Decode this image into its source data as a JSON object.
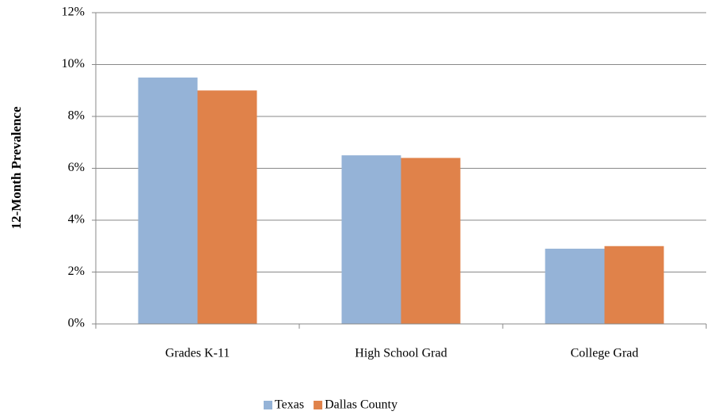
{
  "chart_data": {
    "type": "bar",
    "y_axis_label": "12-Month Prevalence",
    "categories": [
      "Grades K-11",
      "High School Grad",
      "College Grad"
    ],
    "series": [
      {
        "name": "Texas",
        "color": "#95b3d7",
        "values": [
          9.5,
          6.5,
          2.9
        ]
      },
      {
        "name": "Dallas County",
        "color": "#e0824a",
        "values": [
          9.0,
          6.4,
          3.0
        ]
      }
    ],
    "ylim": [
      0,
      12
    ],
    "yticks": [
      {
        "value": 0,
        "label": "0%"
      },
      {
        "value": 2,
        "label": "2%"
      },
      {
        "value": 4,
        "label": "4%"
      },
      {
        "value": 6,
        "label": "6%"
      },
      {
        "value": 8,
        "label": "8%"
      },
      {
        "value": 10,
        "label": "10%"
      },
      {
        "value": 12,
        "label": "12%"
      }
    ],
    "grid": true,
    "legend": "bottom"
  }
}
